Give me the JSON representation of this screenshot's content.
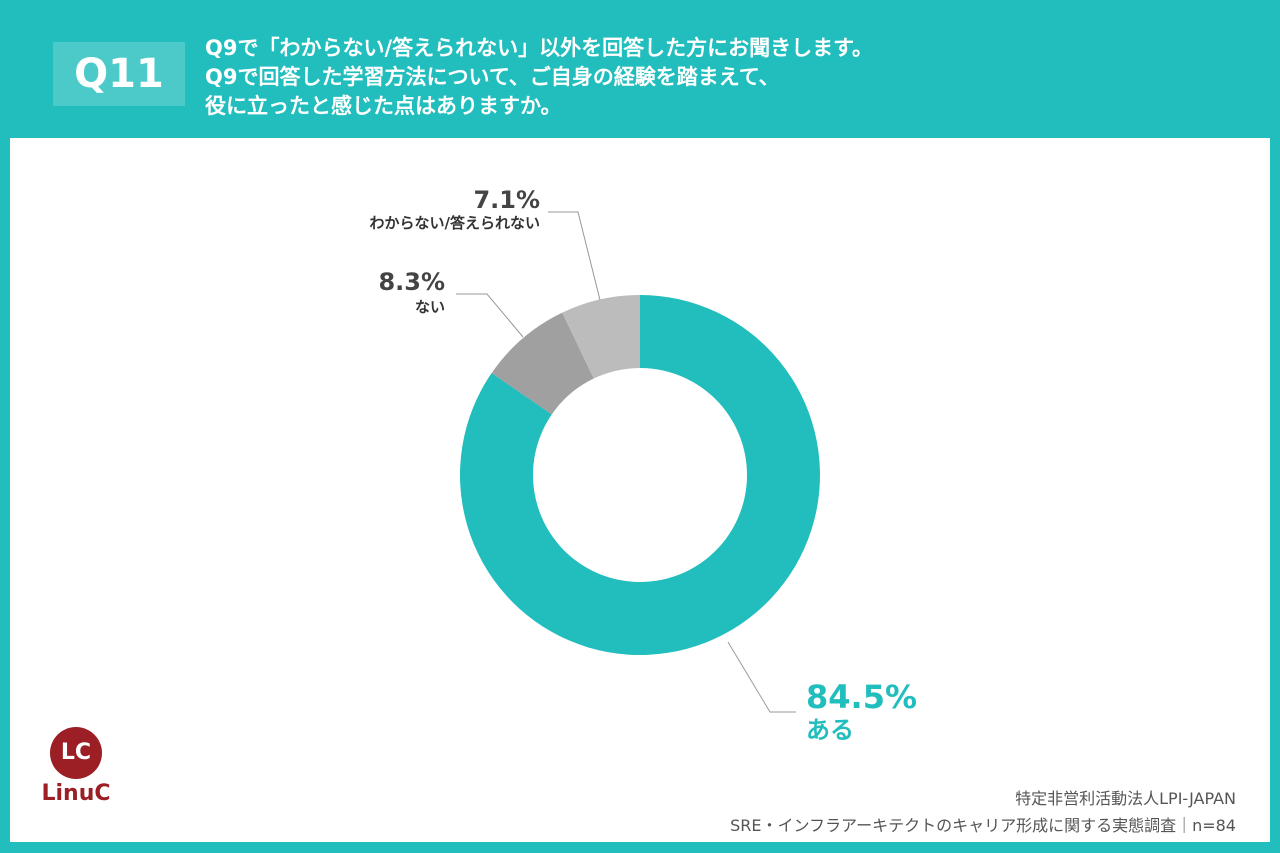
{
  "header": {
    "badge": "Q11",
    "lines": [
      "Q9で「わからない/答えられない」以外を回答した方にお聞きします。",
      "Q9で回答した学習方法について、ご自身の経験を踏まえて、",
      "役に立ったと感じた点はありますか。"
    ]
  },
  "chart_data": {
    "type": "pie",
    "donut": true,
    "slices": [
      {
        "label": "ある",
        "value": 84.5,
        "display": "84.5%",
        "color": "#22bdbd"
      },
      {
        "label": "ない",
        "value": 8.3,
        "display": "8.3%",
        "color": "#a0a0a0"
      },
      {
        "label": "わからない/答えられない",
        "value": 7.1,
        "display": "7.1%",
        "color": "#bcbcbc"
      }
    ]
  },
  "logo": {
    "mark": "LC",
    "name": "LinuC"
  },
  "source": {
    "org": "特定非営利活動法人LPI-JAPAN",
    "survey": "SRE・インフラアーキテクトのキャリア形成に関する実態調査｜n=84"
  }
}
